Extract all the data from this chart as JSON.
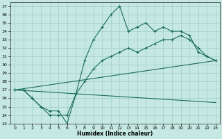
{
  "bg_color": "#c5e8e2",
  "grid_color": "#9ecfc4",
  "line_color": "#1a6b5a",
  "xlabel": "Humidex (Indice chaleur)",
  "xlim": [
    -0.5,
    23.5
  ],
  "ylim": [
    23,
    37.5
  ],
  "yticks": [
    23,
    24,
    25,
    26,
    27,
    28,
    29,
    30,
    31,
    32,
    33,
    34,
    35,
    36,
    37
  ],
  "xticks": [
    0,
    1,
    2,
    3,
    4,
    5,
    6,
    7,
    8,
    9,
    10,
    11,
    12,
    13,
    14,
    15,
    16,
    17,
    18,
    19,
    20,
    21,
    22,
    23
  ],
  "line1_x": [
    0,
    1,
    2,
    3,
    4,
    5,
    6,
    7,
    8,
    9,
    10,
    11,
    12,
    13,
    14,
    15,
    16,
    17,
    18,
    19,
    20,
    21,
    22,
    23
  ],
  "line1_y": [
    27.0,
    27.0,
    26.0,
    25.0,
    24.0,
    24.0,
    24.0,
    26.5,
    30.5,
    33.0,
    34.5,
    36.0,
    37.0,
    34.0,
    34.5,
    35.0,
    34.0,
    34.5,
    34.0,
    34.0,
    33.5,
    31.5,
    31.0,
    30.5
  ],
  "line2_x": [
    0,
    1,
    2,
    3,
    4,
    5,
    6,
    7,
    8,
    9,
    10,
    11,
    12,
    13,
    14,
    15,
    16,
    17,
    18,
    19,
    20,
    21,
    22,
    23
  ],
  "line2_y": [
    27.0,
    27.0,
    26.0,
    25.0,
    24.5,
    24.5,
    23.0,
    26.5,
    28.0,
    29.5,
    30.5,
    31.0,
    31.5,
    32.0,
    31.5,
    32.0,
    32.5,
    33.0,
    33.0,
    33.5,
    33.0,
    32.0,
    31.0,
    30.5
  ],
  "line3_x": [
    0,
    23
  ],
  "line3_y": [
    27.0,
    30.5
  ],
  "line4_x": [
    0,
    23
  ],
  "line4_y": [
    27.0,
    25.5
  ]
}
